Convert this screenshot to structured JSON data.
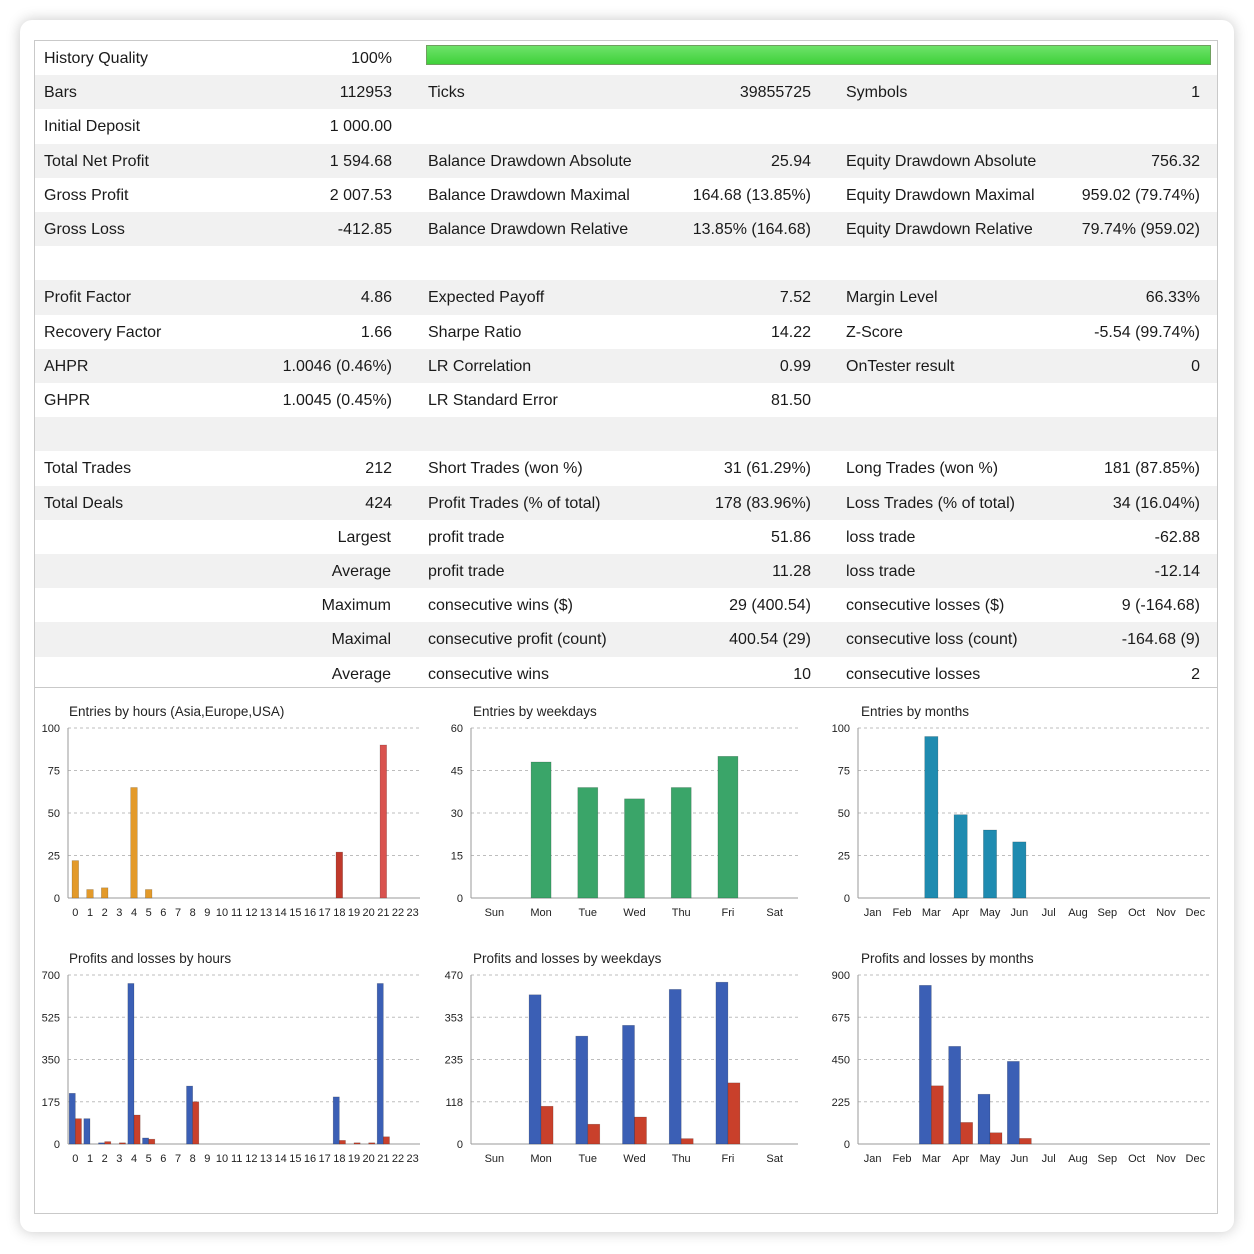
{
  "history_quality": {
    "label": "History Quality",
    "value": "100%",
    "fill_fraction": 1.0
  },
  "stats": [
    {
      "l1": "Bars",
      "v1": "112953",
      "l2": "Ticks",
      "v2": "39855725",
      "l3": "Symbols",
      "v3": "1"
    },
    {
      "l1": "Initial Deposit",
      "v1": "1 000.00",
      "l2": "",
      "v2": "",
      "l3": "",
      "v3": ""
    },
    {
      "l1": "Total Net Profit",
      "v1": "1 594.68",
      "l2": "Balance Drawdown Absolute",
      "v2": "25.94",
      "l3": "Equity Drawdown Absolute",
      "v3": "756.32"
    },
    {
      "l1": "Gross Profit",
      "v1": "2 007.53",
      "l2": "Balance Drawdown Maximal",
      "v2": "164.68 (13.85%)",
      "l3": "Equity Drawdown Maximal",
      "v3": "959.02 (79.74%)"
    },
    {
      "l1": "Gross Loss",
      "v1": "-412.85",
      "l2": "Balance Drawdown Relative",
      "v2": "13.85% (164.68)",
      "l3": "Equity Drawdown Relative",
      "v3": "79.74% (959.02)"
    },
    {
      "l1": "",
      "v1": "",
      "l2": "",
      "v2": "",
      "l3": "",
      "v3": ""
    },
    {
      "l1": "Profit Factor",
      "v1": "4.86",
      "l2": "Expected Payoff",
      "v2": "7.52",
      "l3": "Margin Level",
      "v3": "66.33%"
    },
    {
      "l1": "Recovery Factor",
      "v1": "1.66",
      "l2": "Sharpe Ratio",
      "v2": "14.22",
      "l3": "Z-Score",
      "v3": "-5.54 (99.74%)"
    },
    {
      "l1": "AHPR",
      "v1": "1.0046 (0.46%)",
      "l2": "LR Correlation",
      "v2": "0.99",
      "l3": "OnTester result",
      "v3": "0"
    },
    {
      "l1": "GHPR",
      "v1": "1.0045 (0.45%)",
      "l2": "LR Standard Error",
      "v2": "81.50",
      "l3": "",
      "v3": ""
    },
    {
      "l1": "",
      "v1": "",
      "l2": "",
      "v2": "",
      "l3": "",
      "v3": ""
    },
    {
      "l1": "Total Trades",
      "v1": "212",
      "l2": "Short Trades (won %)",
      "v2": "31 (61.29%)",
      "l3": "Long Trades (won %)",
      "v3": "181 (87.85%)"
    },
    {
      "l1": "Total Deals",
      "v1": "424",
      "l2": "Profit Trades (% of total)",
      "v2": "178 (83.96%)",
      "l3": "Loss Trades (% of total)",
      "v3": "34 (16.04%)"
    },
    {
      "lr": "Largest",
      "l2": "profit trade",
      "v2": "51.86",
      "l3": "loss trade",
      "v3": "-62.88"
    },
    {
      "lr": "Average",
      "l2": "profit trade",
      "v2": "11.28",
      "l3": "loss trade",
      "v3": "-12.14"
    },
    {
      "lr": "Maximum",
      "l2": "consecutive wins ($)",
      "v2": "29 (400.54)",
      "l3": "consecutive losses ($)",
      "v3": "9 (-164.68)"
    },
    {
      "lr": "Maximal",
      "l2": "consecutive profit (count)",
      "v2": "400.54 (29)",
      "l3": "consecutive loss (count)",
      "v3": "-164.68 (9)"
    },
    {
      "lr": "Average",
      "l2": "consecutive wins",
      "v2": "10",
      "l3": "consecutive losses",
      "v3": "2"
    }
  ],
  "chart_data": [
    {
      "type": "bar",
      "title": "Entries by hours (Asia,Europe,USA)",
      "categories": [
        "0",
        "1",
        "2",
        "3",
        "4",
        "5",
        "6",
        "7",
        "8",
        "9",
        "10",
        "11",
        "12",
        "13",
        "14",
        "15",
        "16",
        "17",
        "18",
        "19",
        "20",
        "21",
        "22",
        "23"
      ],
      "yticks": [
        "0",
        "25",
        "50",
        "75",
        "100"
      ],
      "ylim": [
        0,
        100
      ],
      "series": [
        {
          "values": [
            22,
            5,
            6,
            0,
            65,
            5,
            0,
            0,
            0,
            0,
            0,
            0,
            0,
            0,
            0,
            0,
            0,
            0,
            27,
            0,
            0,
            90,
            0,
            0
          ]
        }
      ],
      "colors": [
        "#e39a2a",
        "#e39a2a",
        "#e39a2a",
        "#e39a2a",
        "#e39a2a",
        "#e39a2a",
        "#e39a2a",
        "#e39a2a",
        "#e39a2a",
        "#e39a2a",
        "#e39a2a",
        "#e39a2a",
        "#e39a2a",
        "#e39a2a",
        "#e39a2a",
        "#e39a2a",
        "#e39a2a",
        "#e39a2a",
        "#c0392b",
        "#c0392b",
        "#c0392b",
        "#d9534f",
        "#c0392b",
        "#c0392b"
      ]
    },
    {
      "type": "bar",
      "title": "Entries by weekdays",
      "categories": [
        "Sun",
        "Mon",
        "Tue",
        "Wed",
        "Thu",
        "Fri",
        "Sat"
      ],
      "yticks": [
        "0",
        "15",
        "30",
        "45",
        "60"
      ],
      "ylim": [
        0,
        60
      ],
      "series": [
        {
          "values": [
            0,
            48,
            39,
            35,
            39,
            50,
            0
          ]
        }
      ],
      "colors": [
        "#3aa569"
      ]
    },
    {
      "type": "bar",
      "title": "Entries by months",
      "categories": [
        "Jan",
        "Feb",
        "Mar",
        "Apr",
        "May",
        "Jun",
        "Jul",
        "Aug",
        "Sep",
        "Oct",
        "Nov",
        "Dec"
      ],
      "yticks": [
        "0",
        "25",
        "50",
        "75",
        "100"
      ],
      "ylim": [
        0,
        100
      ],
      "series": [
        {
          "values": [
            0,
            0,
            95,
            49,
            40,
            33,
            0,
            0,
            0,
            0,
            0,
            0
          ]
        }
      ],
      "colors": [
        "#1f8bb0"
      ]
    },
    {
      "type": "bar",
      "title": "Profits and losses by hours",
      "categories": [
        "0",
        "1",
        "2",
        "3",
        "4",
        "5",
        "6",
        "7",
        "8",
        "9",
        "10",
        "11",
        "12",
        "13",
        "14",
        "15",
        "16",
        "17",
        "18",
        "19",
        "20",
        "21",
        "22",
        "23"
      ],
      "yticks": [
        "0",
        "175",
        "350",
        "525",
        "700"
      ],
      "ylim": [
        0,
        700
      ],
      "series": [
        {
          "values": [
            210,
            105,
            5,
            0,
            665,
            25,
            0,
            0,
            240,
            0,
            0,
            0,
            0,
            0,
            0,
            0,
            0,
            0,
            195,
            0,
            0,
            665,
            0,
            0
          ]
        },
        {
          "values": [
            105,
            0,
            10,
            5,
            120,
            20,
            0,
            0,
            175,
            0,
            0,
            0,
            0,
            0,
            0,
            0,
            0,
            0,
            15,
            5,
            5,
            30,
            0,
            0
          ]
        }
      ],
      "colors": [
        "#3b5fb5",
        "#c9402b"
      ]
    },
    {
      "type": "bar",
      "title": "Profits and losses by weekdays",
      "categories": [
        "Sun",
        "Mon",
        "Tue",
        "Wed",
        "Thu",
        "Fri",
        "Sat"
      ],
      "yticks": [
        "0",
        "118",
        "235",
        "353",
        "470"
      ],
      "ylim": [
        0,
        470
      ],
      "series": [
        {
          "values": [
            0,
            415,
            300,
            330,
            430,
            450,
            0
          ]
        },
        {
          "values": [
            0,
            105,
            55,
            75,
            15,
            170,
            0
          ]
        }
      ],
      "colors": [
        "#3b5fb5",
        "#c9402b"
      ]
    },
    {
      "type": "bar",
      "title": "Profits and losses by months",
      "categories": [
        "Jan",
        "Feb",
        "Mar",
        "Apr",
        "May",
        "Jun",
        "Jul",
        "Aug",
        "Sep",
        "Oct",
        "Nov",
        "Dec"
      ],
      "yticks": [
        "0",
        "225",
        "450",
        "675",
        "900"
      ],
      "ylim": [
        0,
        900
      ],
      "series": [
        {
          "values": [
            0,
            0,
            845,
            520,
            265,
            440,
            0,
            0,
            0,
            0,
            0,
            0
          ]
        },
        {
          "values": [
            0,
            0,
            310,
            115,
            60,
            30,
            0,
            0,
            0,
            0,
            0,
            0
          ]
        }
      ],
      "colors": [
        "#3b5fb5",
        "#c9402b"
      ]
    }
  ]
}
